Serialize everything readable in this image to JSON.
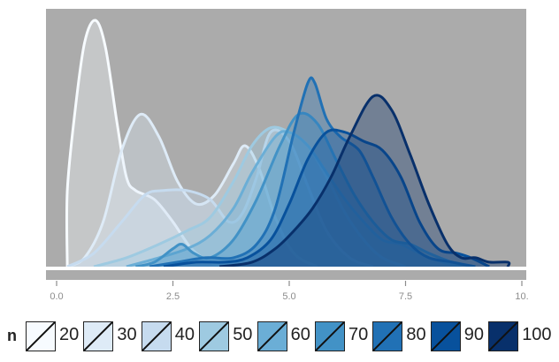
{
  "chart_data": {
    "type": "area",
    "subtype": "density",
    "title": "",
    "xlabel": "",
    "ylabel": "",
    "xlim": [
      0.0,
      10.0
    ],
    "ylim": [
      0,
      0.55
    ],
    "x_ticks": [
      "0.0",
      "2.5",
      "5.0",
      "7.5",
      "10."
    ],
    "x_tick_values": [
      0.0,
      2.5,
      5.0,
      7.5,
      10.0
    ],
    "y_ticks": [],
    "grid": false,
    "panel_background": "#ababab",
    "legend": {
      "title": "n",
      "position": "bottom",
      "entries": [
        "20",
        "30",
        "40",
        "50",
        "60",
        "70",
        "80",
        "90",
        "100"
      ]
    },
    "series": [
      {
        "name": "20",
        "color": "#f7fbff",
        "fill": "#f7fbff",
        "points": [
          [
            0.23,
            0.0
          ],
          [
            0.23,
            0.17
          ],
          [
            0.4,
            0.35
          ],
          [
            0.6,
            0.5
          ],
          [
            0.83,
            0.55
          ],
          [
            1.05,
            0.49
          ],
          [
            1.3,
            0.32
          ],
          [
            1.5,
            0.2
          ],
          [
            1.7,
            0.17
          ],
          [
            2.1,
            0.15
          ],
          [
            2.5,
            0.1
          ],
          [
            2.9,
            0.04
          ],
          [
            3.3,
            0.01
          ],
          [
            3.6,
            0.0
          ]
        ]
      },
      {
        "name": "30",
        "color": "#deebf7",
        "fill": "#deebf7",
        "points": [
          [
            0.23,
            0.0
          ],
          [
            0.6,
            0.02
          ],
          [
            1.0,
            0.1
          ],
          [
            1.4,
            0.26
          ],
          [
            1.8,
            0.34
          ],
          [
            2.2,
            0.29
          ],
          [
            2.6,
            0.19
          ],
          [
            3.0,
            0.14
          ],
          [
            3.4,
            0.16
          ],
          [
            3.8,
            0.23
          ],
          [
            4.05,
            0.27
          ],
          [
            4.35,
            0.22
          ],
          [
            4.7,
            0.11
          ],
          [
            5.1,
            0.03
          ],
          [
            5.6,
            0.0
          ]
        ]
      },
      {
        "name": "40",
        "color": "#c6dbef",
        "fill": "#c6dbef",
        "points": [
          [
            0.23,
            0.0
          ],
          [
            0.8,
            0.03
          ],
          [
            1.4,
            0.1
          ],
          [
            1.9,
            0.16
          ],
          [
            2.3,
            0.17
          ],
          [
            2.8,
            0.17
          ],
          [
            3.3,
            0.15
          ],
          [
            3.7,
            0.1
          ],
          [
            4.0,
            0.12
          ],
          [
            4.3,
            0.2
          ],
          [
            4.6,
            0.3
          ],
          [
            5.0,
            0.28
          ],
          [
            5.4,
            0.18
          ],
          [
            5.8,
            0.08
          ],
          [
            6.3,
            0.02
          ],
          [
            6.8,
            0.0
          ]
        ]
      },
      {
        "name": "50",
        "color": "#9ecae1",
        "fill": "#9ecae1",
        "points": [
          [
            0.8,
            0.0
          ],
          [
            1.5,
            0.02
          ],
          [
            2.2,
            0.05
          ],
          [
            2.8,
            0.08
          ],
          [
            3.3,
            0.11
          ],
          [
            3.8,
            0.19
          ],
          [
            4.2,
            0.27
          ],
          [
            4.6,
            0.31
          ],
          [
            5.0,
            0.3
          ],
          [
            5.4,
            0.27
          ],
          [
            5.8,
            0.2
          ],
          [
            6.2,
            0.12
          ],
          [
            6.6,
            0.06
          ],
          [
            7.0,
            0.02
          ],
          [
            7.5,
            0.0
          ]
        ]
      },
      {
        "name": "60",
        "color": "#6baed6",
        "fill": "#6baed6",
        "points": [
          [
            1.5,
            0.0
          ],
          [
            2.2,
            0.02
          ],
          [
            2.8,
            0.04
          ],
          [
            3.3,
            0.07
          ],
          [
            3.8,
            0.13
          ],
          [
            4.2,
            0.21
          ],
          [
            4.7,
            0.29
          ],
          [
            5.0,
            0.3
          ],
          [
            5.4,
            0.27
          ],
          [
            5.8,
            0.21
          ],
          [
            6.2,
            0.15
          ],
          [
            6.6,
            0.1
          ],
          [
            7.0,
            0.06
          ],
          [
            7.4,
            0.05
          ],
          [
            7.8,
            0.03
          ],
          [
            8.3,
            0.01
          ],
          [
            8.7,
            0.0
          ]
        ]
      },
      {
        "name": "70",
        "color": "#4292c6",
        "fill": "#4292c6",
        "points": [
          [
            1.7,
            0.0
          ],
          [
            2.1,
            0.01
          ],
          [
            2.5,
            0.04
          ],
          [
            2.7,
            0.05
          ],
          [
            2.95,
            0.03
          ],
          [
            3.3,
            0.02
          ],
          [
            3.8,
            0.06
          ],
          [
            4.3,
            0.15
          ],
          [
            4.8,
            0.27
          ],
          [
            5.2,
            0.34
          ],
          [
            5.6,
            0.32
          ],
          [
            6.0,
            0.24
          ],
          [
            6.4,
            0.16
          ],
          [
            6.8,
            0.1
          ],
          [
            7.2,
            0.06
          ],
          [
            7.6,
            0.05
          ],
          [
            8.0,
            0.03
          ],
          [
            8.5,
            0.01
          ],
          [
            9.0,
            0.0
          ]
        ]
      },
      {
        "name": "80",
        "color": "#2171b5",
        "fill": "#2171b5",
        "points": [
          [
            2.0,
            0.0
          ],
          [
            2.6,
            0.01
          ],
          [
            3.2,
            0.02
          ],
          [
            3.8,
            0.02
          ],
          [
            4.3,
            0.05
          ],
          [
            4.7,
            0.13
          ],
          [
            5.1,
            0.3
          ],
          [
            5.4,
            0.41
          ],
          [
            5.55,
            0.41
          ],
          [
            5.8,
            0.33
          ],
          [
            6.1,
            0.29
          ],
          [
            6.5,
            0.26
          ],
          [
            6.8,
            0.2
          ],
          [
            7.2,
            0.11
          ],
          [
            7.6,
            0.05
          ],
          [
            8.0,
            0.02
          ],
          [
            8.5,
            0.01
          ],
          [
            9.0,
            0.0
          ]
        ]
      },
      {
        "name": "90",
        "color": "#08519c",
        "fill": "#08519c",
        "points": [
          [
            2.3,
            0.0
          ],
          [
            3.0,
            0.01
          ],
          [
            3.6,
            0.01
          ],
          [
            4.1,
            0.02
          ],
          [
            4.6,
            0.06
          ],
          [
            5.0,
            0.14
          ],
          [
            5.4,
            0.24
          ],
          [
            5.8,
            0.3
          ],
          [
            6.2,
            0.3
          ],
          [
            6.6,
            0.28
          ],
          [
            7.0,
            0.26
          ],
          [
            7.4,
            0.2
          ],
          [
            7.8,
            0.1
          ],
          [
            8.2,
            0.04
          ],
          [
            8.6,
            0.03
          ],
          [
            8.9,
            0.02
          ],
          [
            9.3,
            0.0
          ]
        ]
      },
      {
        "name": "100",
        "color": "#08306b",
        "fill": "#08306b",
        "points": [
          [
            3.5,
            0.0
          ],
          [
            4.2,
            0.01
          ],
          [
            4.7,
            0.04
          ],
          [
            5.1,
            0.08
          ],
          [
            5.5,
            0.13
          ],
          [
            5.9,
            0.2
          ],
          [
            6.3,
            0.29
          ],
          [
            6.8,
            0.38
          ],
          [
            7.2,
            0.35
          ],
          [
            7.6,
            0.25
          ],
          [
            8.0,
            0.14
          ],
          [
            8.4,
            0.05
          ],
          [
            8.7,
            0.02
          ],
          [
            9.0,
            0.02
          ],
          [
            9.3,
            0.01
          ],
          [
            9.7,
            0.01
          ],
          [
            9.7,
            0.0
          ]
        ]
      }
    ]
  }
}
